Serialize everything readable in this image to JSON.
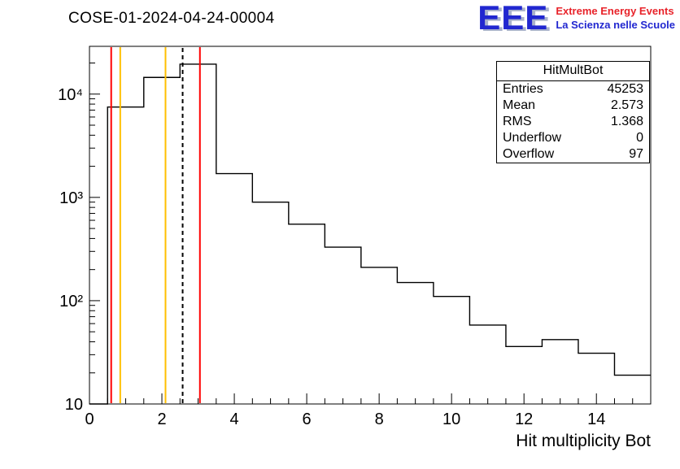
{
  "header": {
    "title": "COSE-01-2024-04-24-00004"
  },
  "logo": {
    "text": "EEE",
    "subtitle1": "Extreme Energy Events",
    "subtitle2": "La Scienza nelle Scuole",
    "blue": "#2127d0",
    "red": "#e8232a"
  },
  "stats": {
    "title": "HitMultBot",
    "rows": [
      {
        "label": "Entries",
        "value": "45253"
      },
      {
        "label": "Mean",
        "value": "2.573"
      },
      {
        "label": "RMS",
        "value": "1.368"
      },
      {
        "label": "Underflow",
        "value": "0"
      },
      {
        "label": "Overflow",
        "value": "97"
      }
    ]
  },
  "chart_data": {
    "type": "bar",
    "subtype": "step-histogram",
    "title": "COSE-01-2024-04-24-00004",
    "xlabel": "Hit multiplicity Bot",
    "ylabel": "",
    "y_scale": "log",
    "x_range": [
      0,
      15.5
    ],
    "y_range": [
      10,
      29000
    ],
    "grid": false,
    "legend": "none",
    "x_ticks": {
      "major": [
        0,
        2,
        4,
        6,
        8,
        10,
        12,
        14
      ],
      "minor_step": 0.5
    },
    "y_ticks": {
      "major": [
        10,
        100,
        1000,
        10000
      ],
      "labels": [
        "10",
        "10²",
        "10³",
        "10⁴"
      ]
    },
    "bin_edges": [
      0,
      0.5,
      1.5,
      2.5,
      3.5,
      4.5,
      5.5,
      6.5,
      7.5,
      8.5,
      9.5,
      10.5,
      11.5,
      12.5,
      13.5,
      14.5,
      15.5
    ],
    "counts": [
      0,
      7500,
      14500,
      19500,
      1700,
      900,
      550,
      330,
      210,
      150,
      110,
      58,
      36,
      42,
      31,
      19
    ],
    "line_color": "#000000",
    "marker_lines": [
      {
        "x": 0.6,
        "color": "#ff0000",
        "style": "solid",
        "name": "red-marker-low"
      },
      {
        "x": 0.85,
        "color": "#ffbf00",
        "style": "solid",
        "name": "yellow-marker-low"
      },
      {
        "x": 2.1,
        "color": "#ffbf00",
        "style": "solid",
        "name": "yellow-marker-high"
      },
      {
        "x": 2.573,
        "color": "#000000",
        "style": "dashed",
        "name": "mean-dashed-line"
      },
      {
        "x": 3.05,
        "color": "#ff0000",
        "style": "solid",
        "name": "red-marker-high"
      }
    ]
  }
}
